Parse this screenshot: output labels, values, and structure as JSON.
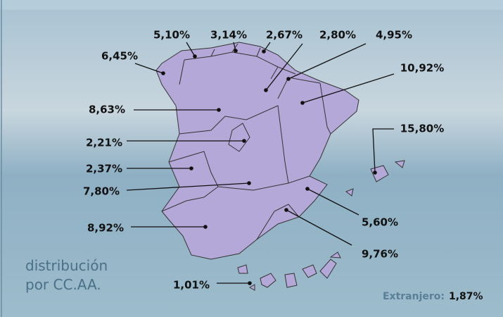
{
  "map": {
    "regions": [
      {
        "label": "6,45%"
      },
      {
        "label": "5,10%"
      },
      {
        "label": "3,14%"
      },
      {
        "label": "2,67%"
      },
      {
        "label": "2,80%"
      },
      {
        "label": "4,95%"
      },
      {
        "label": "10,92%"
      },
      {
        "label": "8,63%"
      },
      {
        "label": "15,80%"
      },
      {
        "label": "2,21%"
      },
      {
        "label": "2,37%"
      },
      {
        "label": "7,80%"
      },
      {
        "label": "5,60%"
      },
      {
        "label": "8,92%"
      },
      {
        "label": "9,76%"
      },
      {
        "label": "1,01%"
      }
    ],
    "caption": [
      "distribución",
      "por CC.AA."
    ],
    "abroad": {
      "label": "Extranjero:",
      "value": "1,87%"
    }
  }
}
